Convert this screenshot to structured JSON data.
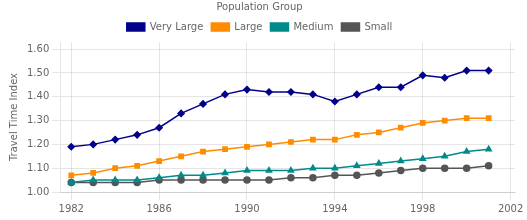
{
  "chart_data": {
    "type": "line",
    "ylabel": "Travel Time Index",
    "legend_title": "Population Group",
    "x": [
      1982,
      1983,
      1984,
      1985,
      1986,
      1987,
      1988,
      1989,
      1990,
      1991,
      1992,
      1993,
      1994,
      1995,
      1996,
      1997,
      1998,
      1999,
      2000,
      2001
    ],
    "series": [
      {
        "name": "Very Large",
        "color": "#00008B",
        "marker": "diamond",
        "values": [
          1.19,
          1.2,
          1.22,
          1.24,
          1.27,
          1.33,
          1.37,
          1.41,
          1.43,
          1.42,
          1.42,
          1.41,
          1.38,
          1.41,
          1.44,
          1.44,
          1.49,
          1.48,
          1.51,
          1.51
        ]
      },
      {
        "name": "Large",
        "color": "#FF8C00",
        "marker": "square",
        "values": [
          1.07,
          1.08,
          1.1,
          1.11,
          1.13,
          1.15,
          1.17,
          1.18,
          1.19,
          1.2,
          1.21,
          1.22,
          1.22,
          1.24,
          1.25,
          1.27,
          1.29,
          1.3,
          1.31,
          1.31
        ]
      },
      {
        "name": "Medium",
        "color": "#008B8B",
        "marker": "triangle",
        "values": [
          1.04,
          1.05,
          1.05,
          1.05,
          1.06,
          1.07,
          1.07,
          1.08,
          1.09,
          1.09,
          1.09,
          1.1,
          1.1,
          1.11,
          1.12,
          1.13,
          1.14,
          1.15,
          1.17,
          1.18
        ]
      },
      {
        "name": "Small",
        "color": "#555555",
        "marker": "circle",
        "values": [
          1.04,
          1.04,
          1.04,
          1.04,
          1.05,
          1.05,
          1.05,
          1.05,
          1.05,
          1.05,
          1.06,
          1.06,
          1.07,
          1.07,
          1.08,
          1.09,
          1.1,
          1.1,
          1.1,
          1.11
        ]
      }
    ],
    "xlim": [
      1981.5,
      2002.2
    ],
    "xticks": [
      1982,
      1986,
      1990,
      1994,
      1998,
      2002
    ],
    "ylim": [
      1.0,
      1.63
    ],
    "yticks": [
      {
        "value": 1.0,
        "label": "1.00"
      },
      {
        "value": 1.1,
        "label": "1.10"
      },
      {
        "value": 1.2,
        "label": "1.20"
      },
      {
        "value": 1.3,
        "label": "1.30"
      },
      {
        "value": 1.4,
        "label": "1.40"
      },
      {
        "value": 1.5,
        "label": "1.50"
      },
      {
        "value": 1.6,
        "label": "1.60"
      }
    ],
    "grid": true,
    "legend": "top"
  }
}
